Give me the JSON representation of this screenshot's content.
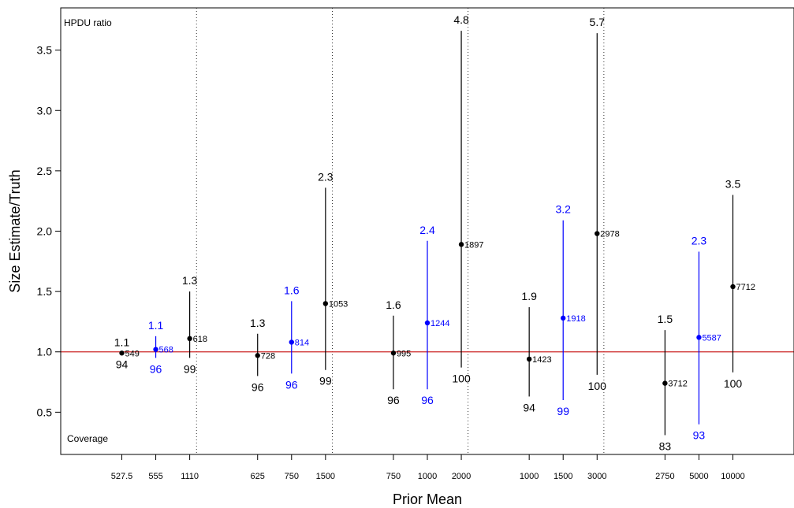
{
  "chart_data": {
    "type": "scatter",
    "title": "",
    "xlabel": "Prior Mean",
    "ylabel": "Size Estimate/Truth",
    "ylim": [
      0.15,
      3.85
    ],
    "yticks": [
      "0.5",
      "1.0",
      "1.5",
      "2.0",
      "2.5",
      "3.0",
      "3.5"
    ],
    "reference_line": 1.0,
    "top_annotation": "HPDU ratio",
    "bottom_annotation": "Coverage",
    "colors": {
      "black": "#000000",
      "blue": "#0000ff",
      "reference": "#cd2626"
    },
    "groups": [
      {
        "points": [
          {
            "prior": "527.5",
            "estimate": 0.99,
            "lower": 0.99,
            "upper": 0.99,
            "size": "549",
            "hpdu": "1.1",
            "coverage": "94",
            "color": "black"
          },
          {
            "prior": "555",
            "estimate": 1.02,
            "lower": 0.95,
            "upper": 1.13,
            "size": "568",
            "hpdu": "1.1",
            "coverage": "96",
            "color": "blue"
          },
          {
            "prior": "1110",
            "estimate": 1.11,
            "lower": 0.95,
            "upper": 1.5,
            "size": "618",
            "hpdu": "1.3",
            "coverage": "99",
            "color": "black"
          }
        ]
      },
      {
        "points": [
          {
            "prior": "625",
            "estimate": 0.97,
            "lower": 0.8,
            "upper": 1.15,
            "size": "728",
            "hpdu": "1.3",
            "coverage": "96",
            "color": "black"
          },
          {
            "prior": "750",
            "estimate": 1.08,
            "lower": 0.82,
            "upper": 1.42,
            "size": "814",
            "hpdu": "1.6",
            "coverage": "96",
            "color": "blue"
          },
          {
            "prior": "1500",
            "estimate": 1.4,
            "lower": 0.85,
            "upper": 2.36,
            "size": "1053",
            "hpdu": "2.3",
            "coverage": "99",
            "color": "black"
          }
        ]
      },
      {
        "points": [
          {
            "prior": "750",
            "estimate": 0.99,
            "lower": 0.69,
            "upper": 1.3,
            "size": "995",
            "hpdu": "1.6",
            "coverage": "96",
            "color": "black"
          },
          {
            "prior": "1000",
            "estimate": 1.24,
            "lower": 0.69,
            "upper": 1.92,
            "size": "1244",
            "hpdu": "2.4",
            "coverage": "96",
            "color": "blue"
          },
          {
            "prior": "2000",
            "estimate": 1.89,
            "lower": 0.87,
            "upper": 3.66,
            "size": "1897",
            "hpdu": "4.8",
            "coverage": "100",
            "color": "black"
          }
        ]
      },
      {
        "points": [
          {
            "prior": "1000",
            "estimate": 0.94,
            "lower": 0.63,
            "upper": 1.37,
            "size": "1423",
            "hpdu": "1.9",
            "coverage": "94",
            "color": "black"
          },
          {
            "prior": "1500",
            "estimate": 1.28,
            "lower": 0.6,
            "upper": 2.09,
            "size": "1918",
            "hpdu": "3.2",
            "coverage": "99",
            "color": "blue"
          },
          {
            "prior": "3000",
            "estimate": 1.98,
            "lower": 0.81,
            "upper": 3.64,
            "size": "2978",
            "hpdu": "5.7",
            "coverage": "100",
            "color": "black"
          }
        ]
      },
      {
        "points": [
          {
            "prior": "2750",
            "estimate": 0.74,
            "lower": 0.31,
            "upper": 1.18,
            "size": "3712",
            "hpdu": "1.5",
            "coverage": "83",
            "color": "black"
          },
          {
            "prior": "5000",
            "estimate": 1.12,
            "lower": 0.4,
            "upper": 1.83,
            "size": "5587",
            "hpdu": "2.3",
            "coverage": "93",
            "color": "blue"
          },
          {
            "prior": "10000",
            "estimate": 1.54,
            "lower": 0.83,
            "upper": 2.3,
            "size": "7712",
            "hpdu": "3.5",
            "coverage": "100",
            "color": "black"
          }
        ]
      }
    ]
  }
}
